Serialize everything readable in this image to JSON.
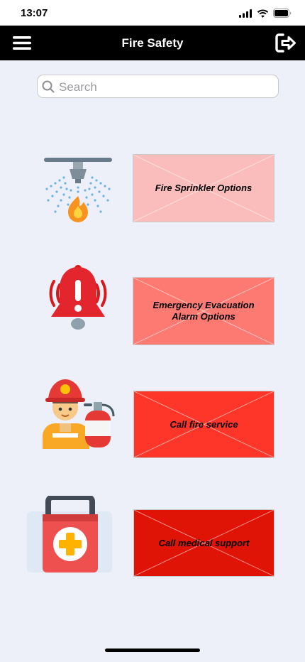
{
  "status": {
    "time": "13:07"
  },
  "header": {
    "title": "Fire Safety"
  },
  "search": {
    "placeholder": "Search",
    "value": ""
  },
  "actions": [
    {
      "label": "Fire Sprinkler Options",
      "icon": "fire-sprinkler-icon",
      "color": "#fbbcbc"
    },
    {
      "label": "Emergency Evacuation Alarm Options",
      "icon": "alarm-bell-icon",
      "color": "#fd7a72"
    },
    {
      "label": "Call fire service",
      "icon": "firefighter-icon",
      "color": "#fd3629"
    },
    {
      "label": "Call medical support",
      "icon": "first-aid-kit-icon",
      "color": "#e01307"
    }
  ]
}
